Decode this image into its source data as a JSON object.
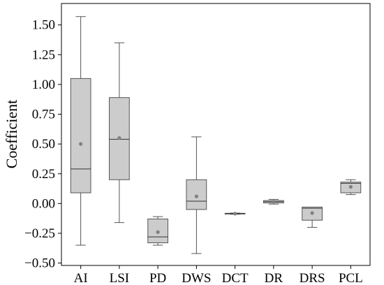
{
  "chart_data": {
    "type": "box",
    "title": "",
    "xlabel": "",
    "ylabel": "Coefficient",
    "ylim": [
      -0.52,
      1.68
    ],
    "yticks": [
      -0.5,
      -0.25,
      0.0,
      0.25,
      0.5,
      0.75,
      1.0,
      1.25,
      1.5
    ],
    "ytick_labels": [
      "−0.50",
      "−0.25",
      "0.00",
      "0.25",
      "0.50",
      "0.75",
      "1.00",
      "1.25",
      "1.50"
    ],
    "grid": false,
    "legend": "none",
    "categories": [
      "AI",
      "LSI",
      "PD",
      "DWS",
      "DCT",
      "DR",
      "DRS",
      "PCL"
    ],
    "boxes": [
      {
        "category": "AI",
        "whisker_low": -0.35,
        "q1": 0.09,
        "median": 0.29,
        "q3": 1.05,
        "whisker_high": 1.57,
        "mean": 0.5
      },
      {
        "category": "LSI",
        "whisker_low": -0.16,
        "q1": 0.2,
        "median": 0.54,
        "q3": 0.89,
        "whisker_high": 1.35,
        "mean": 0.55
      },
      {
        "category": "PD",
        "whisker_low": -0.35,
        "q1": -0.33,
        "median": -0.28,
        "q3": -0.13,
        "whisker_high": -0.11,
        "mean": -0.24
      },
      {
        "category": "DWS",
        "whisker_low": -0.42,
        "q1": -0.05,
        "median": 0.02,
        "q3": 0.2,
        "whisker_high": 0.56,
        "mean": 0.06
      },
      {
        "category": "DCT",
        "whisker_low": -0.09,
        "q1": -0.087,
        "median": -0.085,
        "q3": -0.082,
        "whisker_high": -0.08,
        "mean": -0.085
      },
      {
        "category": "DR",
        "whisker_low": -0.005,
        "q1": 0.005,
        "median": 0.015,
        "q3": 0.025,
        "whisker_high": 0.035,
        "mean": 0.015
      },
      {
        "category": "DRS",
        "whisker_low": -0.2,
        "q1": -0.14,
        "median": -0.04,
        "q3": -0.03,
        "whisker_high": -0.03,
        "mean": -0.08
      },
      {
        "category": "PCL",
        "whisker_low": 0.075,
        "q1": 0.09,
        "median": 0.17,
        "q3": 0.18,
        "whisker_high": 0.2,
        "mean": 0.14
      }
    ],
    "colors": {
      "box_fill": "#cccccc",
      "box_stroke": "#555555",
      "whisker": "#555555",
      "median": "#333333",
      "mean_marker": "#808080",
      "axis": "#000000"
    }
  }
}
